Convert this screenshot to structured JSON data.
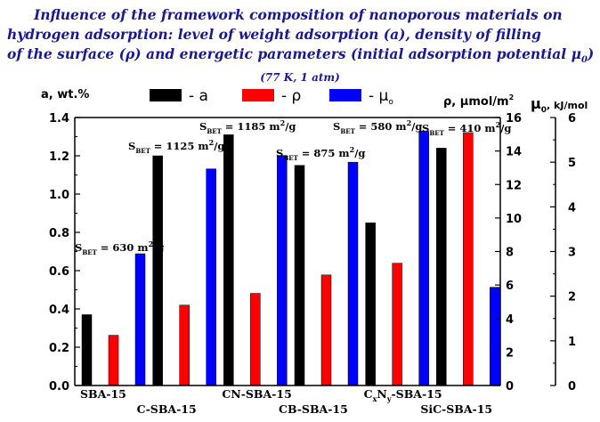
{
  "title": {
    "line1": "Influence of the framework composition of nanoporous materials on",
    "line2": "hydrogen adsorption: level of weight adsorption (a), density of filling",
    "line3_pre": "of the surface (ρ) and energetic parameters (initial adsorption potential μ",
    "line3_sub": "0",
    "line3_post": ")"
  },
  "subtitle": "(77 K, 1 atm)",
  "chart_data": {
    "type": "bar",
    "categories": [
      "SBA-15",
      "C-SBA-15",
      "CN-SBA-15",
      "CB-SBA-15",
      "CxNy-SBA-15",
      "SiC-SBA-15"
    ],
    "category_labels": [
      {
        "pre": "SBA-15",
        "sub": "",
        "mid": "",
        "sub2": "",
        "post": ""
      },
      {
        "pre": "C-SBA-15",
        "sub": "",
        "mid": "",
        "sub2": "",
        "post": ""
      },
      {
        "pre": "CN-SBA-15",
        "sub": "",
        "mid": "",
        "sub2": "",
        "post": ""
      },
      {
        "pre": "CB-SBA-15",
        "sub": "",
        "mid": "",
        "sub2": "",
        "post": ""
      },
      {
        "pre": "C",
        "sub": "x",
        "mid": "N",
        "sub2": "y",
        "post": "-SBA-15"
      },
      {
        "pre": "SiC-SBA-15",
        "sub": "",
        "mid": "",
        "sub2": "",
        "post": ""
      }
    ],
    "series": [
      {
        "name": "a",
        "color": "#000000",
        "axis": "left",
        "values": [
          0.37,
          1.2,
          1.31,
          1.15,
          0.85,
          1.24
        ]
      },
      {
        "name": "ρ",
        "color": "#ff0000",
        "axis": "right1",
        "values": [
          3.0,
          4.8,
          5.5,
          6.6,
          7.3,
          15.1
        ]
      },
      {
        "name": "μ",
        "legend_sub": "o",
        "color": "#0000ff",
        "axis": "right2",
        "values": [
          2.95,
          4.85,
          5.15,
          5.0,
          5.7,
          2.2
        ]
      }
    ],
    "axes": {
      "left": {
        "label": "a, wt.%",
        "ylim": [
          0,
          1.4
        ],
        "ticks": [
          "0.0",
          "0.2",
          "0.4",
          "0.6",
          "0.8",
          "1.0",
          "1.2",
          "1.4"
        ]
      },
      "right1": {
        "label": "ρ, μmol/m",
        "label_sup": "2",
        "ylim": [
          0,
          16
        ],
        "ticks": [
          "0",
          "2",
          "4",
          "6",
          "8",
          "10",
          "12",
          "14",
          "16"
        ]
      },
      "right2": {
        "label_pre": "μ",
        "label_sub": "0",
        "label_post": ", kJ/mol",
        "ylim": [
          0,
          6
        ],
        "ticks": [
          "0",
          "1",
          "2",
          "3",
          "4",
          "5",
          "6"
        ]
      }
    },
    "annotations": [
      {
        "pre": "S",
        "sub": "BET",
        "post": " = 630 m",
        "sup": "2",
        "tail": "/g",
        "category": 0
      },
      {
        "pre": "S",
        "sub": "BET",
        "post": " = 1125 m",
        "sup": "2",
        "tail": "/g",
        "category": 1
      },
      {
        "pre": "S",
        "sub": "BET",
        "post": " = 1185 m",
        "sup": "2",
        "tail": "/g",
        "category": 2
      },
      {
        "pre": "S",
        "sub": "BET",
        "post": " = 875 m",
        "sup": "2",
        "tail": "/g",
        "category": 3
      },
      {
        "pre": "S",
        "sub": "BET",
        "post": " = 580 m",
        "sup": "2",
        "tail": "/g",
        "category": 4
      },
      {
        "pre": "S",
        "sub": "BET",
        "post": " = 410 m",
        "sup": "2",
        "tail": "/g",
        "category": 5
      }
    ],
    "legend_placement": "top",
    "grid": false
  }
}
